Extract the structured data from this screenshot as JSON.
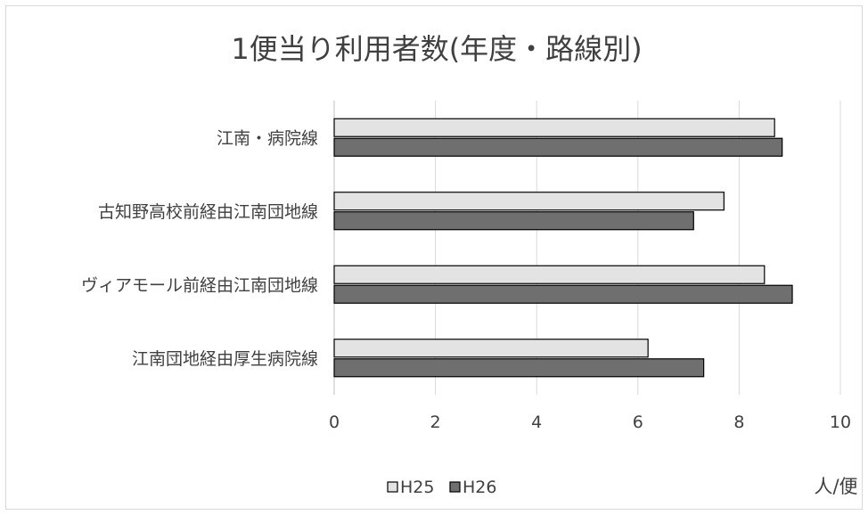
{
  "chart_data": {
    "type": "bar",
    "orientation": "horizontal",
    "title": "1便当り利用者数(年度・路線別)",
    "xlabel": "人/便",
    "xlim": [
      0,
      10
    ],
    "x_ticks": [
      0,
      2,
      4,
      6,
      8,
      10
    ],
    "grid": "vertical",
    "legend_position": "bottom",
    "categories": [
      "江南・病院線",
      "古知野高校前経由江南団地線",
      "ヴィアモール前経由江南団地線",
      "江南団地経由厚生病院線"
    ],
    "series": [
      {
        "name": "H25",
        "color": "#e3e3e3",
        "values": [
          8.7,
          7.7,
          8.5,
          6.2
        ]
      },
      {
        "name": "H26",
        "color": "#6f6f6f",
        "values": [
          8.85,
          7.1,
          9.05,
          7.3
        ]
      }
    ]
  }
}
